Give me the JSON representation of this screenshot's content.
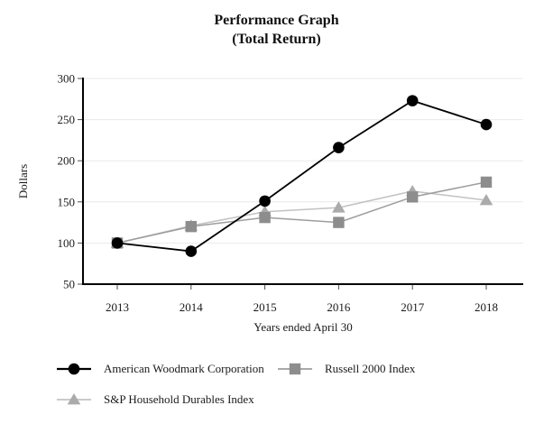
{
  "title": {
    "line1": "Performance Graph",
    "line2": "(Total Return)"
  },
  "chart_data": {
    "type": "line",
    "title": "Performance Graph (Total Return)",
    "x": [
      "2013",
      "2014",
      "2015",
      "2016",
      "2017",
      "2018"
    ],
    "series": [
      {
        "name": "American Woodmark Corporation",
        "marker": "circle",
        "marker_color": "#000000",
        "line_color": "#000000",
        "values": [
          100,
          90,
          151,
          216,
          273,
          244
        ]
      },
      {
        "name": "Russell 2000 Index",
        "marker": "square",
        "marker_color": "#8d8d8d",
        "line_color": "#9d9d9d",
        "values": [
          100,
          120,
          131,
          125,
          156,
          174
        ]
      },
      {
        "name": "S&P Household Durables Index",
        "marker": "triangle",
        "marker_color": "#ababab",
        "line_color": "#c2c2c2",
        "values": [
          100,
          121,
          138,
          143,
          163,
          152
        ]
      }
    ],
    "xlabel": "Years ended April 30",
    "ylabel": "Dollars",
    "ylim": [
      50,
      300
    ],
    "yticks": [
      50,
      100,
      150,
      200,
      250,
      300
    ],
    "grid": "horizontal-only",
    "legend_position": "bottom-left"
  },
  "colors": {
    "background": "#ffffff",
    "axis": "#000000",
    "tick": "#4d4d4d",
    "gridline": "#e9e9e9",
    "text": "#1a1a1a"
  }
}
